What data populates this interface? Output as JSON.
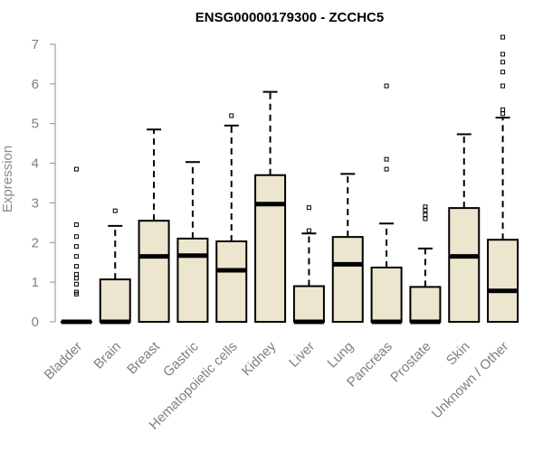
{
  "chart_data": {
    "type": "boxplot",
    "title": "ENSG00000179300 - ZCCHC5",
    "xlabel": "",
    "ylabel": "Expression",
    "ylim": [
      0,
      7
    ],
    "y_ticks": [
      0,
      1,
      2,
      3,
      4,
      5,
      6,
      7
    ],
    "grid": false,
    "legend": "none",
    "box_fill": "#ece6cf",
    "box_stroke": "#000000",
    "axis_text_color": "#7f7f7f",
    "categories": [
      "Bladder",
      "Brain",
      "Breast",
      "Gastric",
      "Hematopoietic cells",
      "Kidney",
      "Liver",
      "Lung",
      "Pancreas",
      "Prostate",
      "Skin",
      "Unknown / Other"
    ],
    "boxes": [
      {
        "label": "Bladder",
        "whisker_low": 0,
        "q1": 0,
        "median": 0,
        "q3": 0,
        "whisker_high": 0,
        "outliers": [
          0.7,
          0.75,
          0.95,
          1.1,
          1.2,
          1.4,
          1.65,
          1.9,
          2.15,
          2.45,
          3.85
        ]
      },
      {
        "label": "Brain",
        "whisker_low": 0,
        "q1": 0,
        "median": 0,
        "q3": 1.07,
        "whisker_high": 2.42,
        "outliers": [
          2.8
        ]
      },
      {
        "label": "Breast",
        "whisker_low": 0,
        "q1": 0,
        "median": 1.65,
        "q3": 2.55,
        "whisker_high": 4.85,
        "outliers": []
      },
      {
        "label": "Gastric",
        "whisker_low": 0,
        "q1": 0,
        "median": 1.67,
        "q3": 2.1,
        "whisker_high": 4.03,
        "outliers": []
      },
      {
        "label": "Hematopoietic cells",
        "whisker_low": 0,
        "q1": 0,
        "median": 1.3,
        "q3": 2.03,
        "whisker_high": 4.95,
        "outliers": [
          5.2
        ]
      },
      {
        "label": "Kidney",
        "whisker_low": 0,
        "q1": 0,
        "median": 2.97,
        "q3": 3.7,
        "whisker_high": 5.8,
        "outliers": []
      },
      {
        "label": "Liver",
        "whisker_low": 0,
        "q1": 0,
        "median": 0,
        "q3": 0.9,
        "whisker_high": 2.23,
        "outliers": [
          2.3,
          2.88
        ]
      },
      {
        "label": "Lung",
        "whisker_low": 0,
        "q1": 0,
        "median": 1.45,
        "q3": 2.14,
        "whisker_high": 3.73,
        "outliers": []
      },
      {
        "label": "Pancreas",
        "whisker_low": 0,
        "q1": 0,
        "median": 0,
        "q3": 1.37,
        "whisker_high": 2.48,
        "outliers": [
          3.85,
          4.1,
          5.95
        ]
      },
      {
        "label": "Prostate",
        "whisker_low": 0,
        "q1": 0,
        "median": 0,
        "q3": 0.88,
        "whisker_high": 1.85,
        "outliers": [
          2.6,
          2.7,
          2.82,
          2.9
        ]
      },
      {
        "label": "Skin",
        "whisker_low": 0,
        "q1": 0,
        "median": 1.65,
        "q3": 2.87,
        "whisker_high": 4.73,
        "outliers": []
      },
      {
        "label": "Unknown / Other",
        "whisker_low": 0,
        "q1": 0,
        "median": 0.78,
        "q3": 2.07,
        "whisker_high": 5.15,
        "outliers": [
          5.25,
          5.35,
          5.95,
          6.3,
          6.55,
          6.75,
          7.18
        ]
      }
    ]
  }
}
